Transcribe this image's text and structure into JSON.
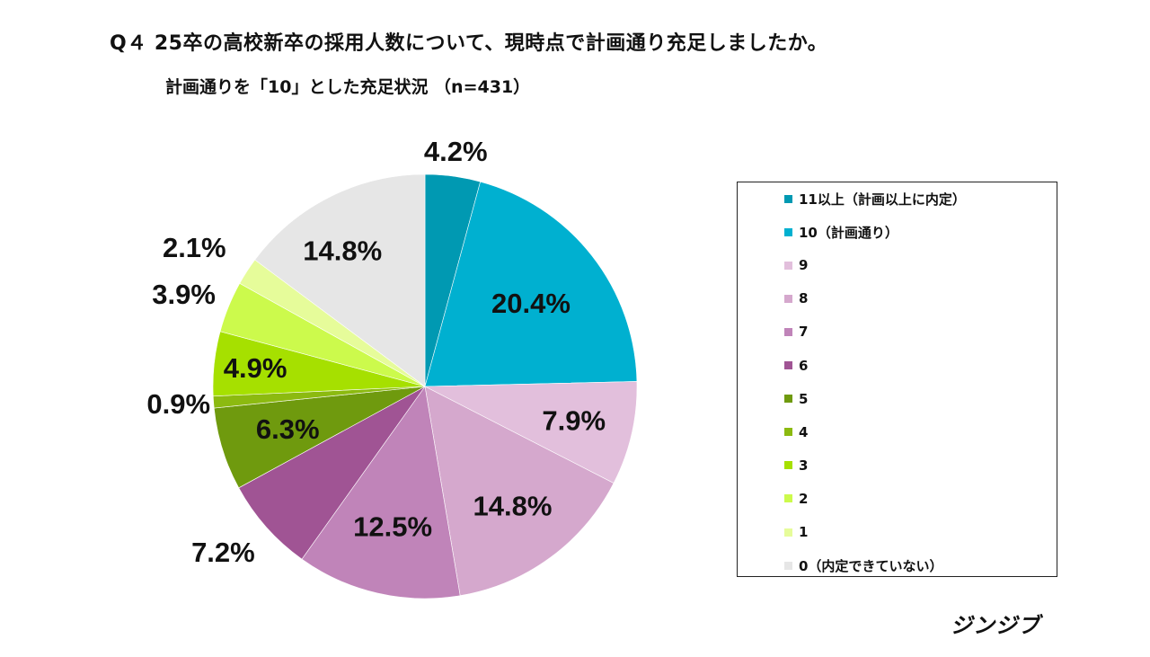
{
  "chart_data": {
    "type": "pie",
    "title": "Q４ 25卒の高校新卒の採用人数について、現時点で計画通り充足しましたか。",
    "subtitle": "計画通りを「10」とした充足状況 （n=431）",
    "legend_position": "right",
    "categories": [
      "11以上（計画以上に内定）",
      "10（計画通り）",
      "9",
      "8",
      "7",
      "6",
      "5",
      "4",
      "3",
      "2",
      "1",
      "0（内定できていない）"
    ],
    "values": [
      4.2,
      20.4,
      7.9,
      14.8,
      12.5,
      7.2,
      6.3,
      0.9,
      4.9,
      3.9,
      2.1,
      14.8
    ],
    "labels": [
      "4.2%",
      "20.4%",
      "7.9%",
      "14.8%",
      "12.5%",
      "7.2%",
      "6.3%",
      "0.9%",
      "4.9%",
      "3.9%",
      "2.1%",
      "14.8%"
    ],
    "colors": [
      "#0099b2",
      "#00b0d0",
      "#e2bfdc",
      "#d5a8cd",
      "#c084b9",
      "#a05494",
      "#6f9a0e",
      "#8cba10",
      "#a6e000",
      "#ccfa4c",
      "#e6fc9a",
      "#e6e6e6"
    ]
  },
  "brand": "ジンジブ"
}
